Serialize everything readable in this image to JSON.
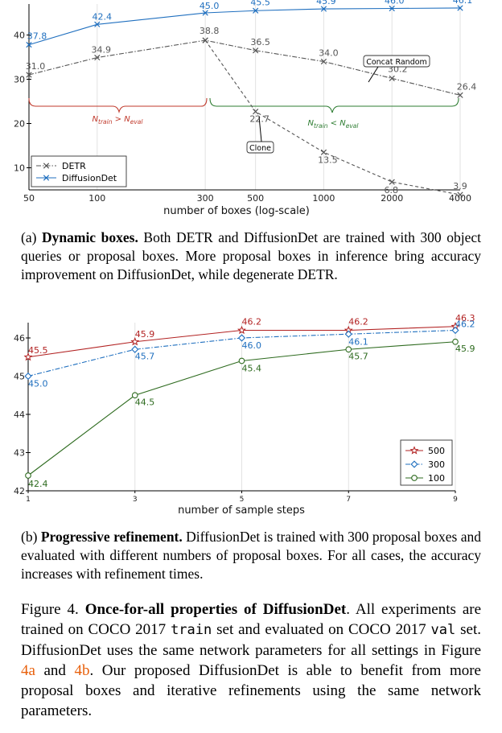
{
  "chart_data": [
    {
      "type": "line",
      "x_scale": "log",
      "x": [
        50,
        100,
        300,
        500,
        1000,
        2000,
        4000
      ],
      "xticklabels": [
        "50",
        "100",
        "300",
        "500",
        "1000",
        "2000",
        "4000"
      ],
      "xlabel": "number of boxes (log-scale)",
      "ylabel": "",
      "yticks": [
        10,
        20,
        30,
        40
      ],
      "ylim": [
        5,
        47
      ],
      "grid": "vertical",
      "legend": "bottom-left",
      "series": [
        {
          "name": "DETR",
          "marker": "x",
          "style": "dash-dot",
          "color": "#555555",
          "values": [
            31.0,
            34.9,
            38.8,
            36.5,
            34.0,
            30.2,
            26.4
          ],
          "labels": [
            "31.0",
            "34.9",
            "38.8",
            "36.5",
            "34.0",
            "30.2",
            "26.4"
          ]
        },
        {
          "name": "DETR (clone)",
          "marker": "x",
          "style": "dashed",
          "color": "#555555",
          "x": [
            300,
            500,
            1000,
            2000,
            4000
          ],
          "values": [
            38.8,
            22.7,
            13.5,
            6.8,
            3.9
          ],
          "labels": [
            "",
            "22.7",
            "13.5",
            "6.8",
            "3.9"
          ]
        },
        {
          "name": "DiffusionDet",
          "marker": "x",
          "style": "solid",
          "color": "#1f6fbf",
          "values": [
            37.8,
            42.4,
            45.0,
            45.5,
            45.9,
            46.0,
            46.1
          ],
          "labels": [
            "37.8",
            "42.4",
            "45.0",
            "45.5",
            "45.9",
            "46.0",
            "46.1"
          ]
        }
      ],
      "legend_labels": [
        "DETR",
        "DiffusionDet"
      ],
      "annotations": {
        "concat_random": "Concat Random",
        "clone": "Clone",
        "n_train_gt": {
          "main": "N",
          "sub1": "train",
          "op": " > N",
          "sub2": "eval"
        },
        "n_train_lt": {
          "main": "N",
          "sub1": "train",
          "op": " < N",
          "sub2": "eval"
        },
        "red_brace_color": "#c0392b",
        "green_brace_color": "#2e7d32"
      }
    },
    {
      "type": "line",
      "x": [
        1,
        3,
        5,
        7,
        9
      ],
      "xticklabels": [
        "1",
        "3",
        "5",
        "7",
        "9"
      ],
      "xlabel": "number of sample steps",
      "ylabel": "",
      "yticks": [
        42,
        43,
        44,
        45,
        46
      ],
      "ylim": [
        42,
        46.4
      ],
      "grid": "vertical",
      "legend": "bottom-right",
      "series": [
        {
          "name": "500",
          "marker": "star",
          "style": "solid",
          "color": "#b22222",
          "values": [
            45.5,
            45.9,
            46.2,
            46.2,
            46.3
          ]
        },
        {
          "name": "300",
          "marker": "diamond",
          "style": "dash-dot",
          "color": "#1f6fbf",
          "values": [
            45.0,
            45.7,
            46.0,
            46.1,
            46.2
          ]
        },
        {
          "name": "100",
          "marker": "circle",
          "style": "solid",
          "color": "#2e6b1f",
          "values": [
            42.4,
            44.5,
            45.4,
            45.7,
            45.9
          ]
        }
      ]
    }
  ],
  "captions": {
    "a": {
      "prefix": "(a) ",
      "bold": "Dynamic boxes.",
      "text": " Both DETR and DiffusionDet are trained with 300 object queries or proposal boxes. More proposal boxes in inference bring accuracy improvement on DiffusionDet, while degenerate DETR."
    },
    "b": {
      "prefix": "(b) ",
      "bold": "Progressive refinement.",
      "text": " DiffusionDet is trained with 300 proposal boxes and evaluated with different numbers of proposal boxes. For all cases, the accuracy increases with refinement times."
    },
    "figure": {
      "label": "Figure 4.",
      "bold": "Once-for-all properties of DiffusionDet",
      "t1": ". All experiments are trained on COCO 2017 ",
      "mono1": "train",
      "t2": " set and evaluated on COCO 2017 ",
      "mono2": "val",
      "t3": " set. DiffusionDet uses the same network parameters for all settings in Figure ",
      "ref1": "4a",
      "t4": " and ",
      "ref2": "4b",
      "t5": ". Our proposed DiffusionDet is able to benefit from more proposal boxes and iterative refinements using the same network parameters."
    }
  }
}
